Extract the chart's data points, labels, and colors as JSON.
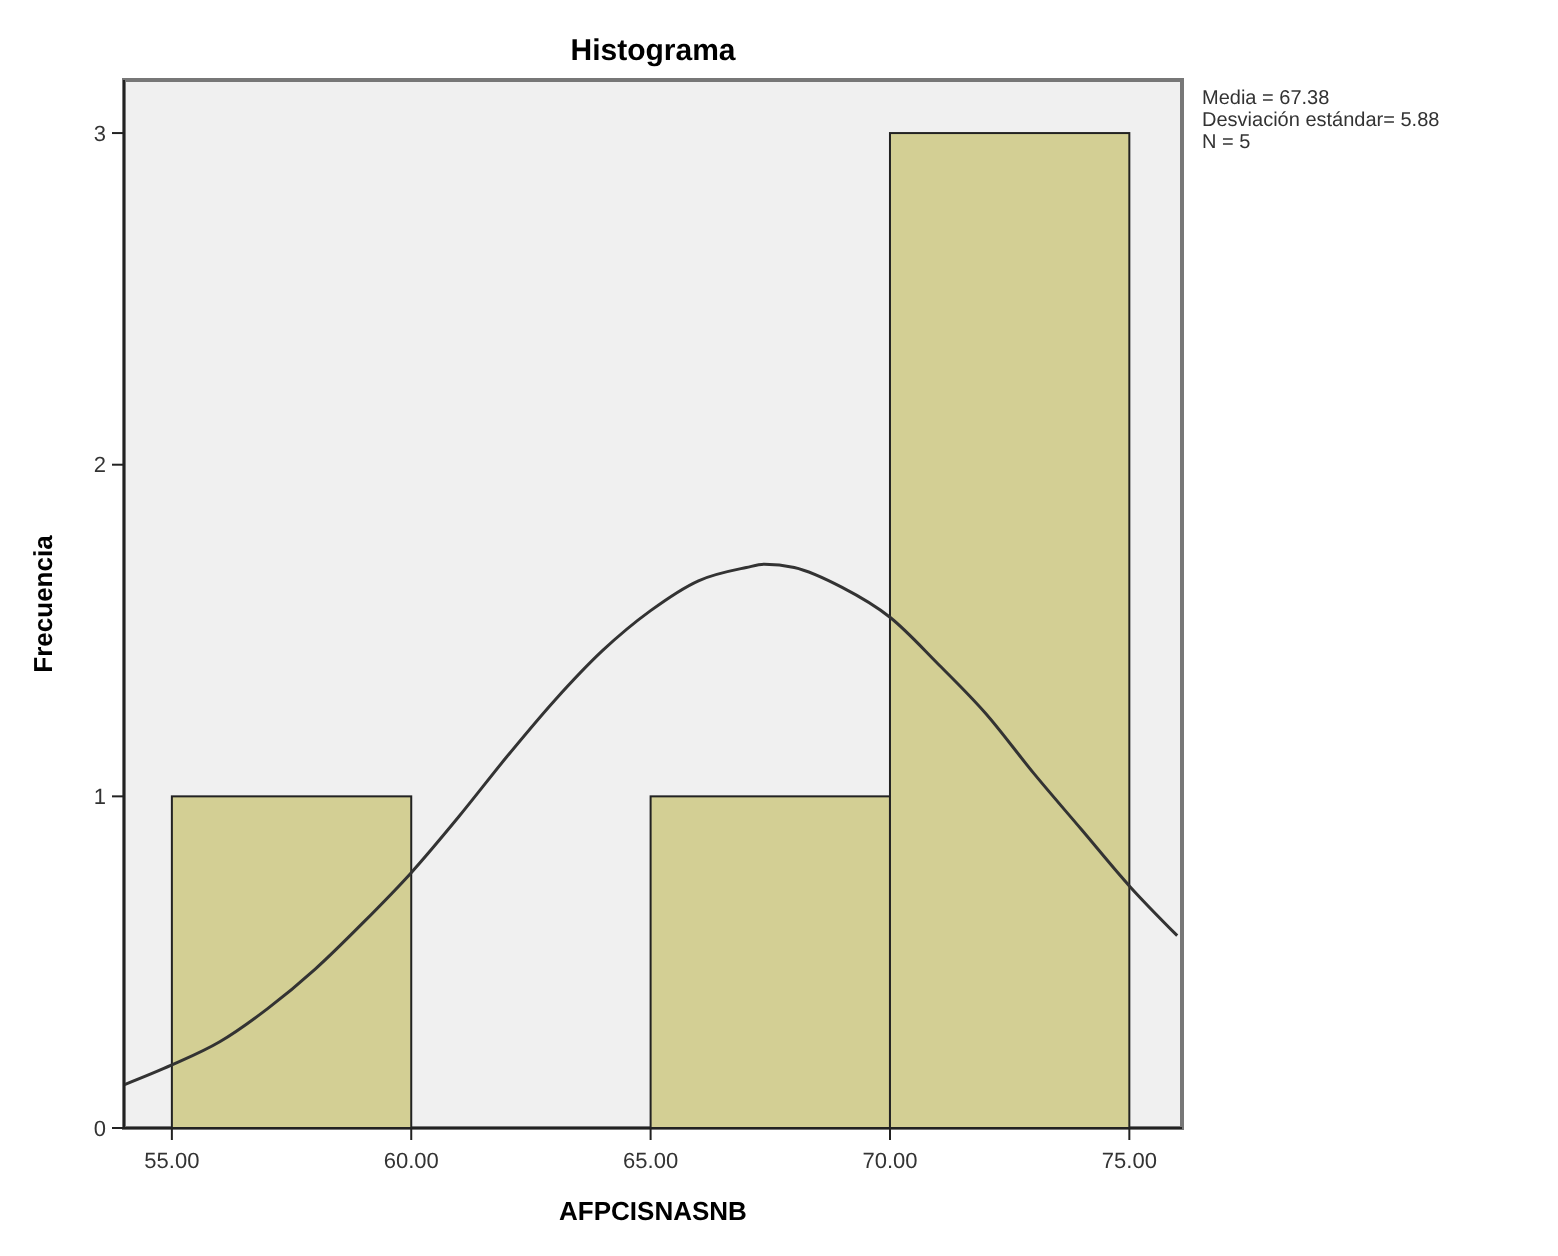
{
  "chart_data": {
    "type": "histogram",
    "title": "Histograma",
    "xlabel": "AFPCISNASNB",
    "ylabel": "Frecuencia",
    "annotations": [
      "Media = 67.38",
      "Desviación estándar= 5.88",
      "N = 5"
    ],
    "bins": [
      55,
      60,
      65,
      70,
      75
    ],
    "series": [
      {
        "type": "histogram",
        "color": "#d3cf94",
        "values": [
          1,
          0,
          1,
          3
        ]
      },
      {
        "type": "line",
        "color": "#333333",
        "x": [
          54,
          55,
          56,
          57,
          58,
          59,
          60,
          61,
          62,
          63,
          64,
          65,
          66,
          67,
          67.38,
          68,
          69,
          70,
          71,
          72,
          73,
          74,
          75,
          76
        ],
        "values": [
          0.13,
          0.19,
          0.26,
          0.36,
          0.48,
          0.62,
          0.77,
          0.94,
          1.12,
          1.29,
          1.44,
          1.56,
          1.65,
          1.69,
          1.7,
          1.69,
          1.63,
          1.54,
          1.4,
          1.25,
          1.07,
          0.9,
          0.73,
          0.58
        ]
      }
    ],
    "xlim": [
      54,
      76.1
    ],
    "ylim": [
      0,
      3.16
    ],
    "xticks": [
      {
        "value": 55,
        "label": "55.00"
      },
      {
        "value": 60,
        "label": "60.00"
      },
      {
        "value": 65,
        "label": "65.00"
      },
      {
        "value": 70,
        "label": "70.00"
      },
      {
        "value": 75,
        "label": "75.00"
      }
    ],
    "yticks": [
      0,
      1,
      2,
      3
    ]
  }
}
